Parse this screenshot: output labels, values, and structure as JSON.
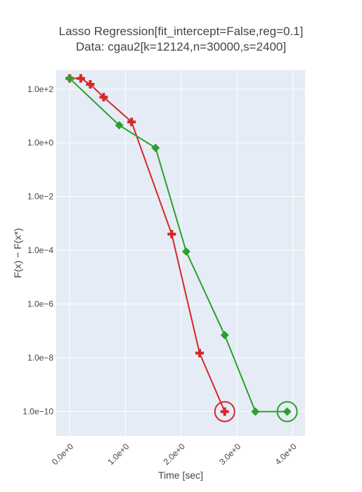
{
  "chart_data": {
    "type": "line",
    "title_lines": [
      "Lasso Regression[fit_intercept=False,reg=0.1]",
      "Data: cgau2[k=12124,n=30000,s=2400]"
    ],
    "xlabel": "Time [sec]",
    "ylabel": "F(x) − F(x*)",
    "y_scale": "log",
    "xlim": [
      -0.24,
      4.22
    ],
    "ylog_range": [
      -10.9,
      2.7
    ],
    "grid": true,
    "x_ticks": [
      {
        "value": 0,
        "label": "0.0e+0"
      },
      {
        "value": 1,
        "label": "1.0e+0"
      },
      {
        "value": 2,
        "label": "2.0e+0"
      },
      {
        "value": 3,
        "label": "3.0e+0"
      },
      {
        "value": 4,
        "label": "4.0e+0"
      }
    ],
    "y_ticks": [
      {
        "log": 2,
        "label": "1.0e+2"
      },
      {
        "log": 0,
        "label": "1.0e+0"
      },
      {
        "log": -2,
        "label": "1.0e−2"
      },
      {
        "log": -4,
        "label": "1.0e−4"
      },
      {
        "log": -6,
        "label": "1.0e−6"
      },
      {
        "log": -8,
        "label": "1.0e−8"
      },
      {
        "log": -10,
        "label": "1.0e−10"
      }
    ],
    "series": [
      {
        "color": "#d62728",
        "marker": "cross",
        "x": [
          0.0,
          0.2,
          0.37,
          0.61,
          1.11,
          1.83,
          2.33,
          2.78
        ],
        "y": [
          250,
          250,
          150,
          50,
          6,
          0.0004,
          1.5e-08,
          1e-10
        ],
        "final_circled": true
      },
      {
        "color": "#2ca02c",
        "marker": "diamond",
        "x": [
          0.0,
          0.89,
          1.54,
          2.09,
          2.78,
          3.33,
          3.9
        ],
        "y": [
          250,
          4.5,
          0.65,
          9e-05,
          7e-08,
          1e-10,
          1e-10
        ],
        "final_circled": true
      }
    ]
  }
}
